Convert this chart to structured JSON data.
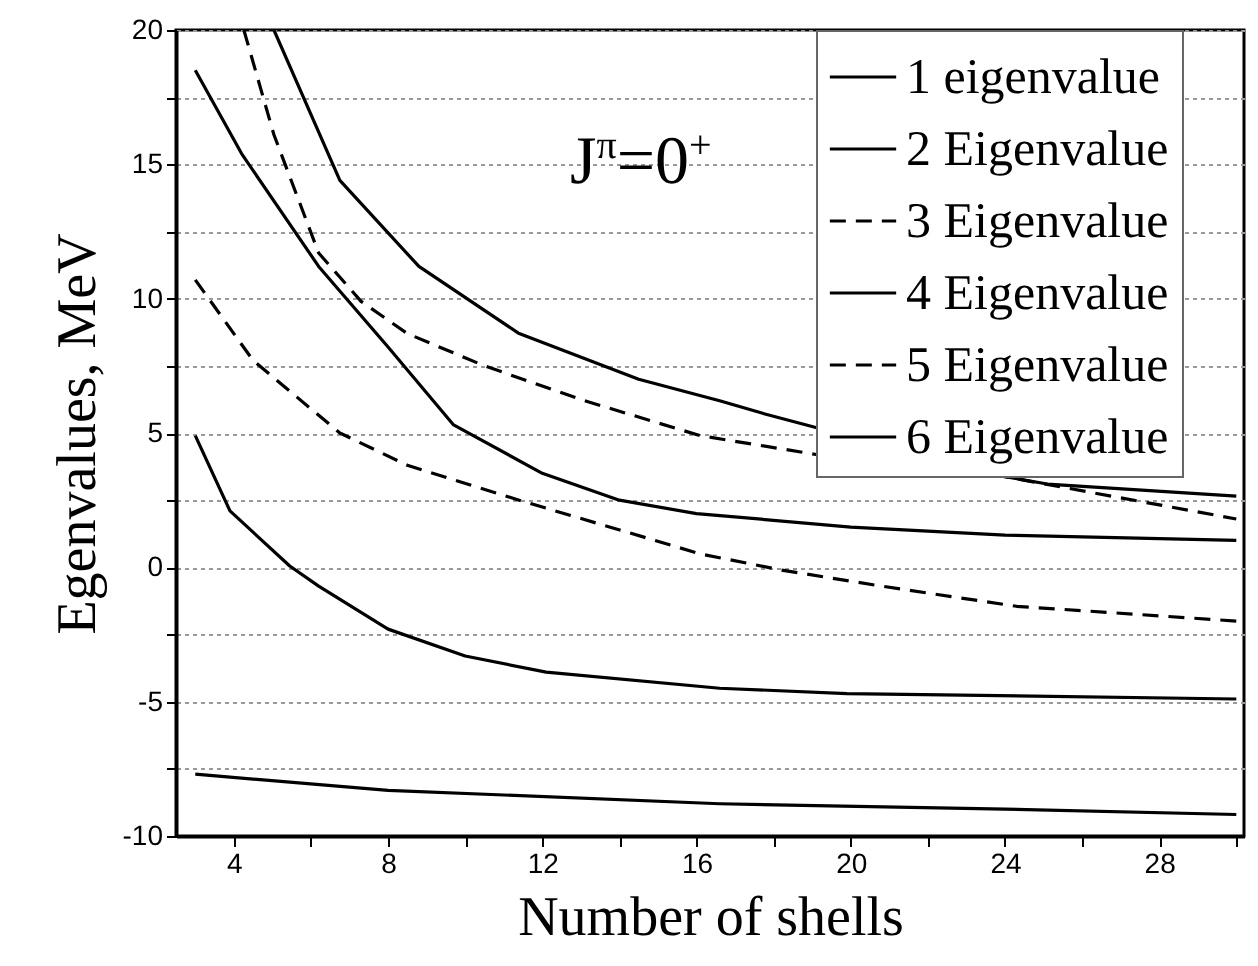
{
  "chart_data": {
    "type": "line",
    "xlabel": "Number of shells",
    "ylabel": "Egenvalues, MeV",
    "annotations": [
      "J$^{π}$=0$^{+}$"
    ],
    "xlim": [
      2.5,
      30.2
    ],
    "ylim": [
      -10,
      20
    ],
    "xticks": [
      4,
      {
        "value": 6,
        "label": null
      },
      8,
      {
        "value": 10,
        "label": null
      },
      12,
      {
        "value": 14,
        "label": null
      },
      16,
      {
        "value": 18,
        "label": null
      },
      20,
      {
        "value": 22,
        "label": null
      },
      24,
      {
        "value": 26,
        "label": null
      },
      28,
      {
        "value": 30,
        "label": null
      }
    ],
    "yticks": [
      -10,
      {
        "value": -7.5,
        "label": null
      },
      -5,
      {
        "value": -2.5,
        "label": null
      },
      0,
      {
        "value": 2.5,
        "label": null
      },
      5,
      {
        "value": 7.5,
        "label": null
      },
      10,
      {
        "value": 12.5,
        "label": null
      },
      15,
      {
        "value": 17.5,
        "label": null
      },
      20
    ],
    "grid": "y",
    "legend": "top right",
    "marker": "none",
    "series": [
      {
        "name": "1 eigenvalue",
        "color": "#000000",
        "line_style": "solid",
        "x": [
          3,
          8,
          16.6,
          24,
          30
        ],
        "values": [
          -7.7,
          -8.3,
          -8.8,
          -9.0,
          -9.2
        ]
      },
      {
        "name": "2 Eigenvalue",
        "color": "#000000",
        "line_style": "solid",
        "x": [
          3,
          3.9,
          5.45,
          6.2,
          8,
          10,
          12.1,
          16.6,
          19.9,
          30
        ],
        "values": [
          4.9,
          2.1,
          0.05,
          -0.7,
          -2.3,
          -3.3,
          -3.9,
          -4.5,
          -4.7,
          -4.9
        ]
      },
      {
        "name": "3 Eigenvalue",
        "color": "#000000",
        "line_style": "dashed",
        "x": [
          4.26,
          5.04,
          6.2,
          7.3,
          8.5,
          10.5,
          13.1,
          16.1,
          19.1,
          23.9,
          30
        ],
        "values": [
          20,
          16.1,
          11.7,
          9.9,
          8.7,
          7.5,
          6.2,
          4.9,
          4.2,
          3.4,
          1.8
        ]
      },
      {
        "name": "4 Eigenvalue",
        "color": "#000000",
        "line_style": "solid",
        "x": [
          3,
          4.2,
          6.2,
          8,
          9.7,
          12,
          14,
          16,
          20,
          24,
          30
        ],
        "values": [
          18.5,
          15.4,
          11.2,
          8.2,
          5.3,
          3.5,
          2.5,
          2.0,
          1.5,
          1.2,
          1.0
        ]
      },
      {
        "name": "5 Eigenvalue",
        "color": "#000000",
        "line_style": "dashed",
        "x": [
          3,
          4.5,
          6.75,
          8.5,
          11.4,
          16.1,
          18.2,
          20.8,
          24.3,
          30
        ],
        "values": [
          10.7,
          7.7,
          5.0,
          3.8,
          2.5,
          0.5,
          -0.1,
          -0.7,
          -1.45,
          -2.0
        ]
      },
      {
        "name": "6 Eigenvalue",
        "color": "#000000",
        "line_style": "solid",
        "x": [
          5.04,
          6.75,
          8.8,
          11.4,
          14.5,
          16.6,
          17.8,
          19.9,
          23.9,
          25.1,
          30
        ],
        "values": [
          20,
          14.4,
          11.2,
          8.7,
          7.0,
          6.2,
          5.7,
          4.9,
          3.4,
          3.1,
          2.65
        ]
      }
    ]
  }
}
